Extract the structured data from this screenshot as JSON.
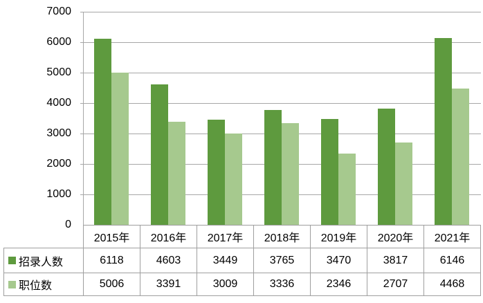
{
  "chart_data": {
    "type": "bar",
    "title": "",
    "categories": [
      "2015年",
      "2016年",
      "2017年",
      "2018年",
      "2019年",
      "2020年",
      "2021年"
    ],
    "series": [
      {
        "name": "招录人数",
        "color": "#5E9A3E",
        "values": [
          6118,
          4603,
          3449,
          3765,
          3470,
          3817,
          6146
        ]
      },
      {
        "name": "职位数",
        "color": "#A6C98E",
        "values": [
          5006,
          3391,
          3009,
          3336,
          2346,
          2707,
          4468
        ]
      }
    ],
    "xlabel": "",
    "ylabel": "",
    "y_axis": {
      "min": 0,
      "max": 7000,
      "step": 1000,
      "tick_labels": [
        "7000",
        "6000",
        "5000",
        "4000",
        "3000",
        "2000",
        "1000",
        "0"
      ]
    },
    "ylim": [
      0,
      7000
    ],
    "grid": true,
    "legend_position": "table-rows-left"
  },
  "colors": {
    "series_1": "#5E9A3E",
    "series_2": "#A6C98E",
    "gridline": "#A6A6A6",
    "table_border": "#9E9E9E",
    "text": "#000000",
    "background": "#FFFFFF"
  }
}
